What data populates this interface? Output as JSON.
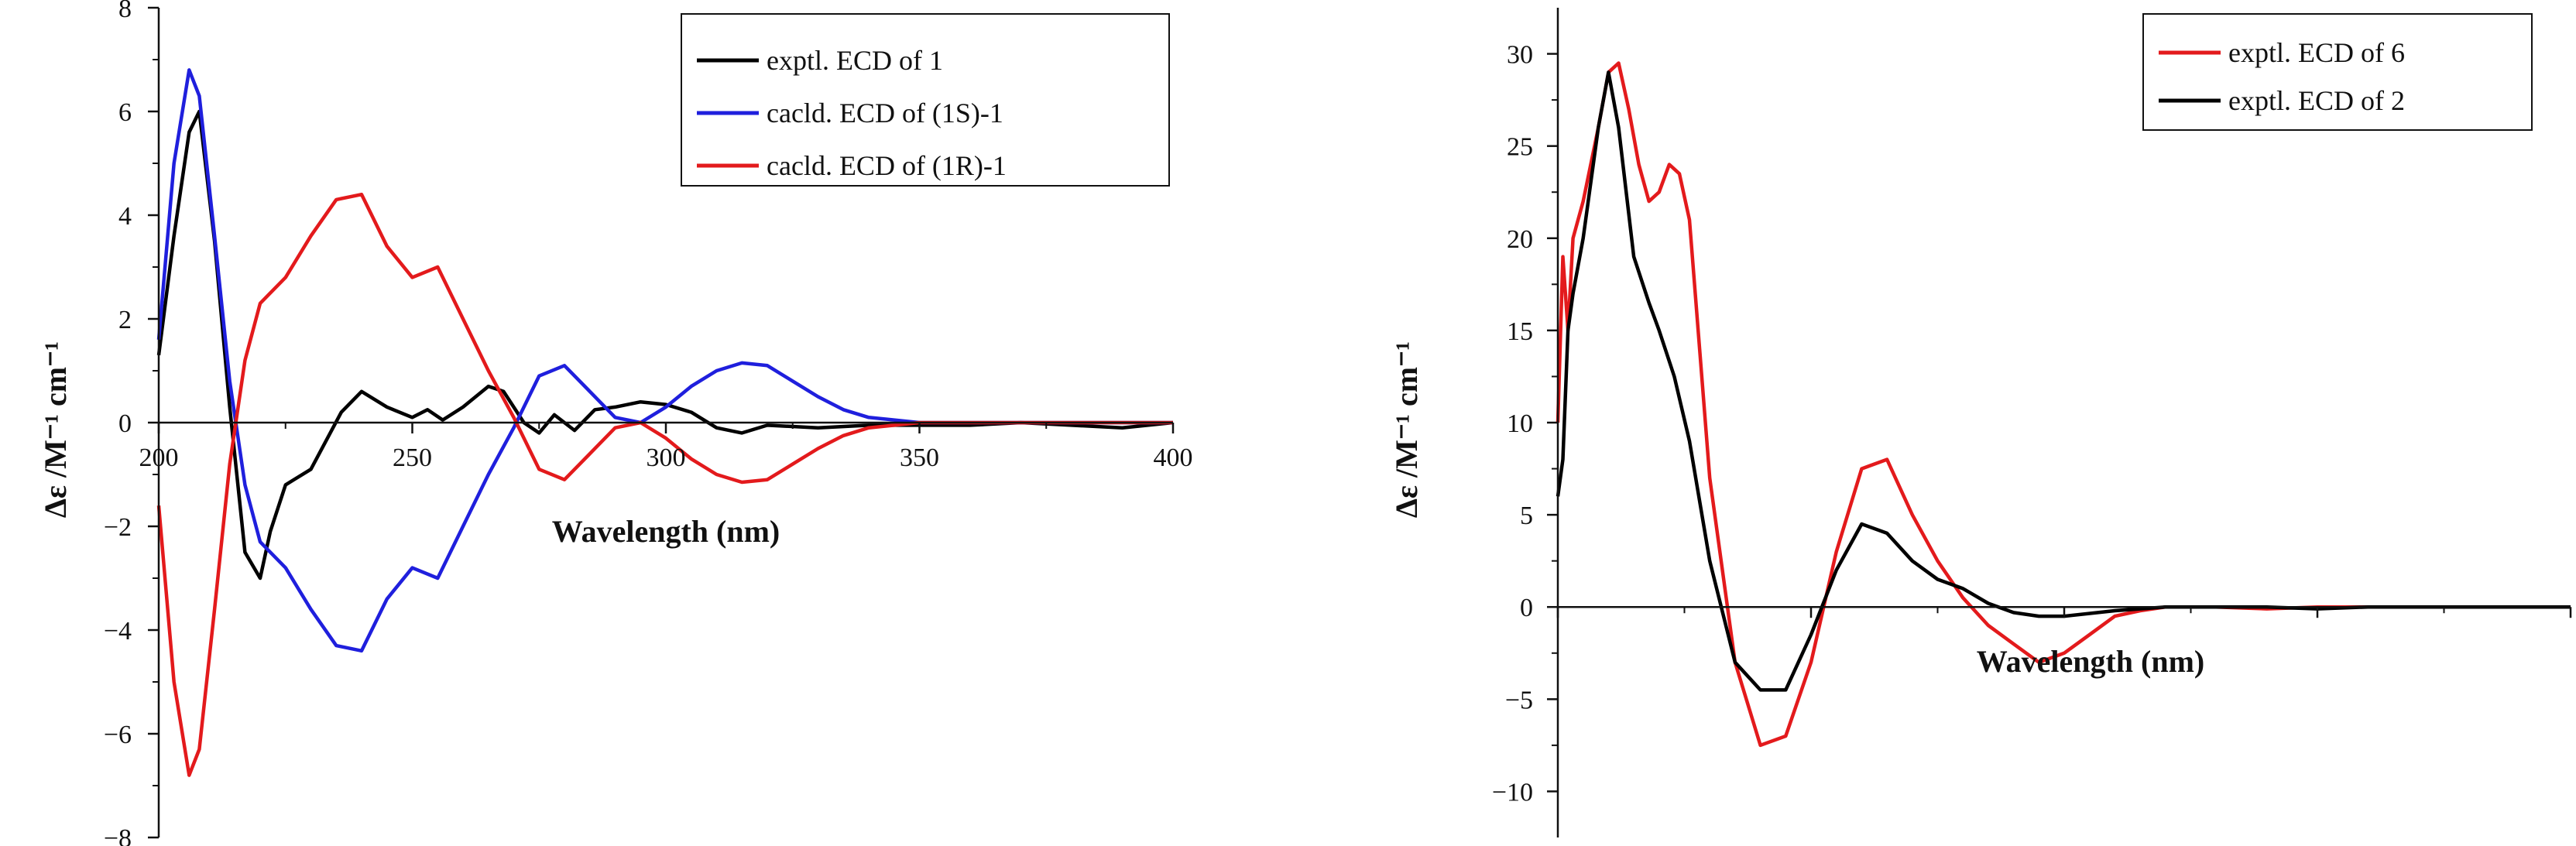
{
  "chart_data": [
    {
      "type": "line",
      "xlabel": "Wavelength (nm)",
      "ylabel": "Δε /M⁻¹ cm⁻¹",
      "xlim": [
        200,
        400
      ],
      "ylim": [
        -8,
        8
      ],
      "x_ticks": [
        "200",
        "250",
        "300",
        "350",
        "400"
      ],
      "y_ticks": [
        "-8",
        "-6",
        "-4",
        "-2",
        "0",
        "2",
        "4",
        "6",
        "8"
      ],
      "legend_position": "top-right",
      "series": [
        {
          "name": "exptl. ECD of 1",
          "color": "#000000",
          "x": [
            200,
            203,
            206,
            208,
            211,
            214,
            217,
            220,
            222,
            225,
            230,
            236,
            240,
            245,
            250,
            253,
            256,
            260,
            265,
            268,
            272,
            275,
            278,
            282,
            286,
            290,
            295,
            300,
            305,
            310,
            315,
            320,
            330,
            340,
            350,
            360,
            370,
            380,
            390,
            400
          ],
          "y": [
            1.3,
            3.6,
            5.6,
            6.0,
            3.5,
            0.3,
            -2.5,
            -3.0,
            -2.1,
            -1.2,
            -0.9,
            0.2,
            0.6,
            0.3,
            0.1,
            0.25,
            0.05,
            0.3,
            0.7,
            0.6,
            0.0,
            -0.2,
            0.15,
            -0.15,
            0.25,
            0.3,
            0.4,
            0.35,
            0.2,
            -0.1,
            -0.2,
            -0.05,
            -0.1,
            -0.05,
            -0.05,
            -0.05,
            0.0,
            -0.05,
            -0.1,
            0.0
          ]
        },
        {
          "name": "cacld. ECD of (1S)-1",
          "color": "#1f1fdd",
          "x": [
            200,
            203,
            206,
            208,
            211,
            214,
            217,
            220,
            225,
            230,
            235,
            240,
            245,
            250,
            255,
            260,
            265,
            270,
            275,
            280,
            285,
            290,
            295,
            300,
            305,
            310,
            315,
            320,
            325,
            330,
            335,
            340,
            345,
            350,
            360,
            370,
            380,
            390,
            400
          ],
          "y": [
            1.6,
            5.0,
            6.8,
            6.3,
            3.6,
            0.8,
            -1.2,
            -2.3,
            -2.8,
            -3.6,
            -4.3,
            -4.4,
            -3.4,
            -2.8,
            -3.0,
            -2.0,
            -1.0,
            -0.1,
            0.9,
            1.1,
            0.6,
            0.1,
            0.0,
            0.3,
            0.7,
            1.0,
            1.15,
            1.1,
            0.8,
            0.5,
            0.25,
            0.1,
            0.05,
            0.0,
            0.0,
            0.0,
            0.0,
            0.0,
            0.0
          ]
        },
        {
          "name": "cacld. ECD of (1R)-1",
          "color": "#e31a1c",
          "x": [
            200,
            203,
            206,
            208,
            211,
            214,
            217,
            220,
            225,
            230,
            235,
            240,
            245,
            250,
            255,
            260,
            265,
            270,
            275,
            280,
            285,
            290,
            295,
            300,
            305,
            310,
            315,
            320,
            325,
            330,
            335,
            340,
            345,
            350,
            360,
            370,
            380,
            390,
            400
          ],
          "y": [
            -1.6,
            -5.0,
            -6.8,
            -6.3,
            -3.6,
            -0.8,
            1.2,
            2.3,
            2.8,
            3.6,
            4.3,
            4.4,
            3.4,
            2.8,
            3.0,
            2.0,
            1.0,
            0.1,
            -0.9,
            -1.1,
            -0.6,
            -0.1,
            0.0,
            -0.3,
            -0.7,
            -1.0,
            -1.15,
            -1.1,
            -0.8,
            -0.5,
            -0.25,
            -0.1,
            -0.05,
            0.0,
            0.0,
            0.0,
            0.0,
            0.0,
            0.0
          ]
        }
      ]
    },
    {
      "type": "line",
      "xlabel": "Wavelength (nm)",
      "ylabel": "Δε /M⁻¹ cm⁻¹",
      "xlim": [
        200,
        400
      ],
      "ylim": [
        -12.5,
        32.5
      ],
      "x_ticks": [],
      "y_ticks": [
        "-10",
        "-5",
        "0",
        "5",
        "10",
        "15",
        "20",
        "25",
        "30"
      ],
      "legend_position": "top-right",
      "series": [
        {
          "name": "exptl. ECD of 6",
          "color": "#e31a1c",
          "x": [
            200,
            201,
            202,
            203,
            205,
            208,
            210,
            212,
            214,
            216,
            218,
            220,
            222,
            224,
            226,
            228,
            230,
            235,
            240,
            245,
            250,
            255,
            260,
            265,
            270,
            275,
            280,
            285,
            290,
            295,
            300,
            305,
            310,
            315,
            320,
            330,
            340,
            350,
            360,
            370,
            380,
            390,
            400
          ],
          "y": [
            10,
            19,
            15,
            20,
            22,
            26,
            29,
            29.5,
            27,
            24,
            22,
            22.5,
            24,
            23.5,
            21,
            14,
            7,
            -3,
            -7.5,
            -7,
            -3,
            3,
            7.5,
            8,
            5,
            2.5,
            0.5,
            -1,
            -2,
            -3,
            -2.5,
            -1.5,
            -0.5,
            -0.2,
            0,
            0,
            -0.1,
            0,
            0,
            0,
            0,
            0,
            0
          ]
        },
        {
          "name": "exptl. ECD of 2",
          "color": "#000000",
          "x": [
            200,
            201,
            202,
            203,
            205,
            208,
            210,
            212,
            215,
            218,
            220,
            223,
            226,
            230,
            235,
            240,
            245,
            250,
            255,
            260,
            265,
            270,
            275,
            280,
            285,
            290,
            295,
            300,
            310,
            320,
            330,
            340,
            350,
            360,
            370,
            380,
            390,
            400
          ],
          "y": [
            6,
            8,
            15,
            17,
            20,
            26,
            29,
            26,
            19,
            16.5,
            15,
            12.5,
            9,
            2.5,
            -3,
            -4.5,
            -4.5,
            -1.5,
            2,
            4.5,
            4,
            2.5,
            1.5,
            1,
            0.2,
            -0.3,
            -0.5,
            -0.5,
            -0.2,
            0,
            0,
            0,
            -0.1,
            0,
            0,
            0,
            0,
            0
          ]
        }
      ]
    }
  ]
}
